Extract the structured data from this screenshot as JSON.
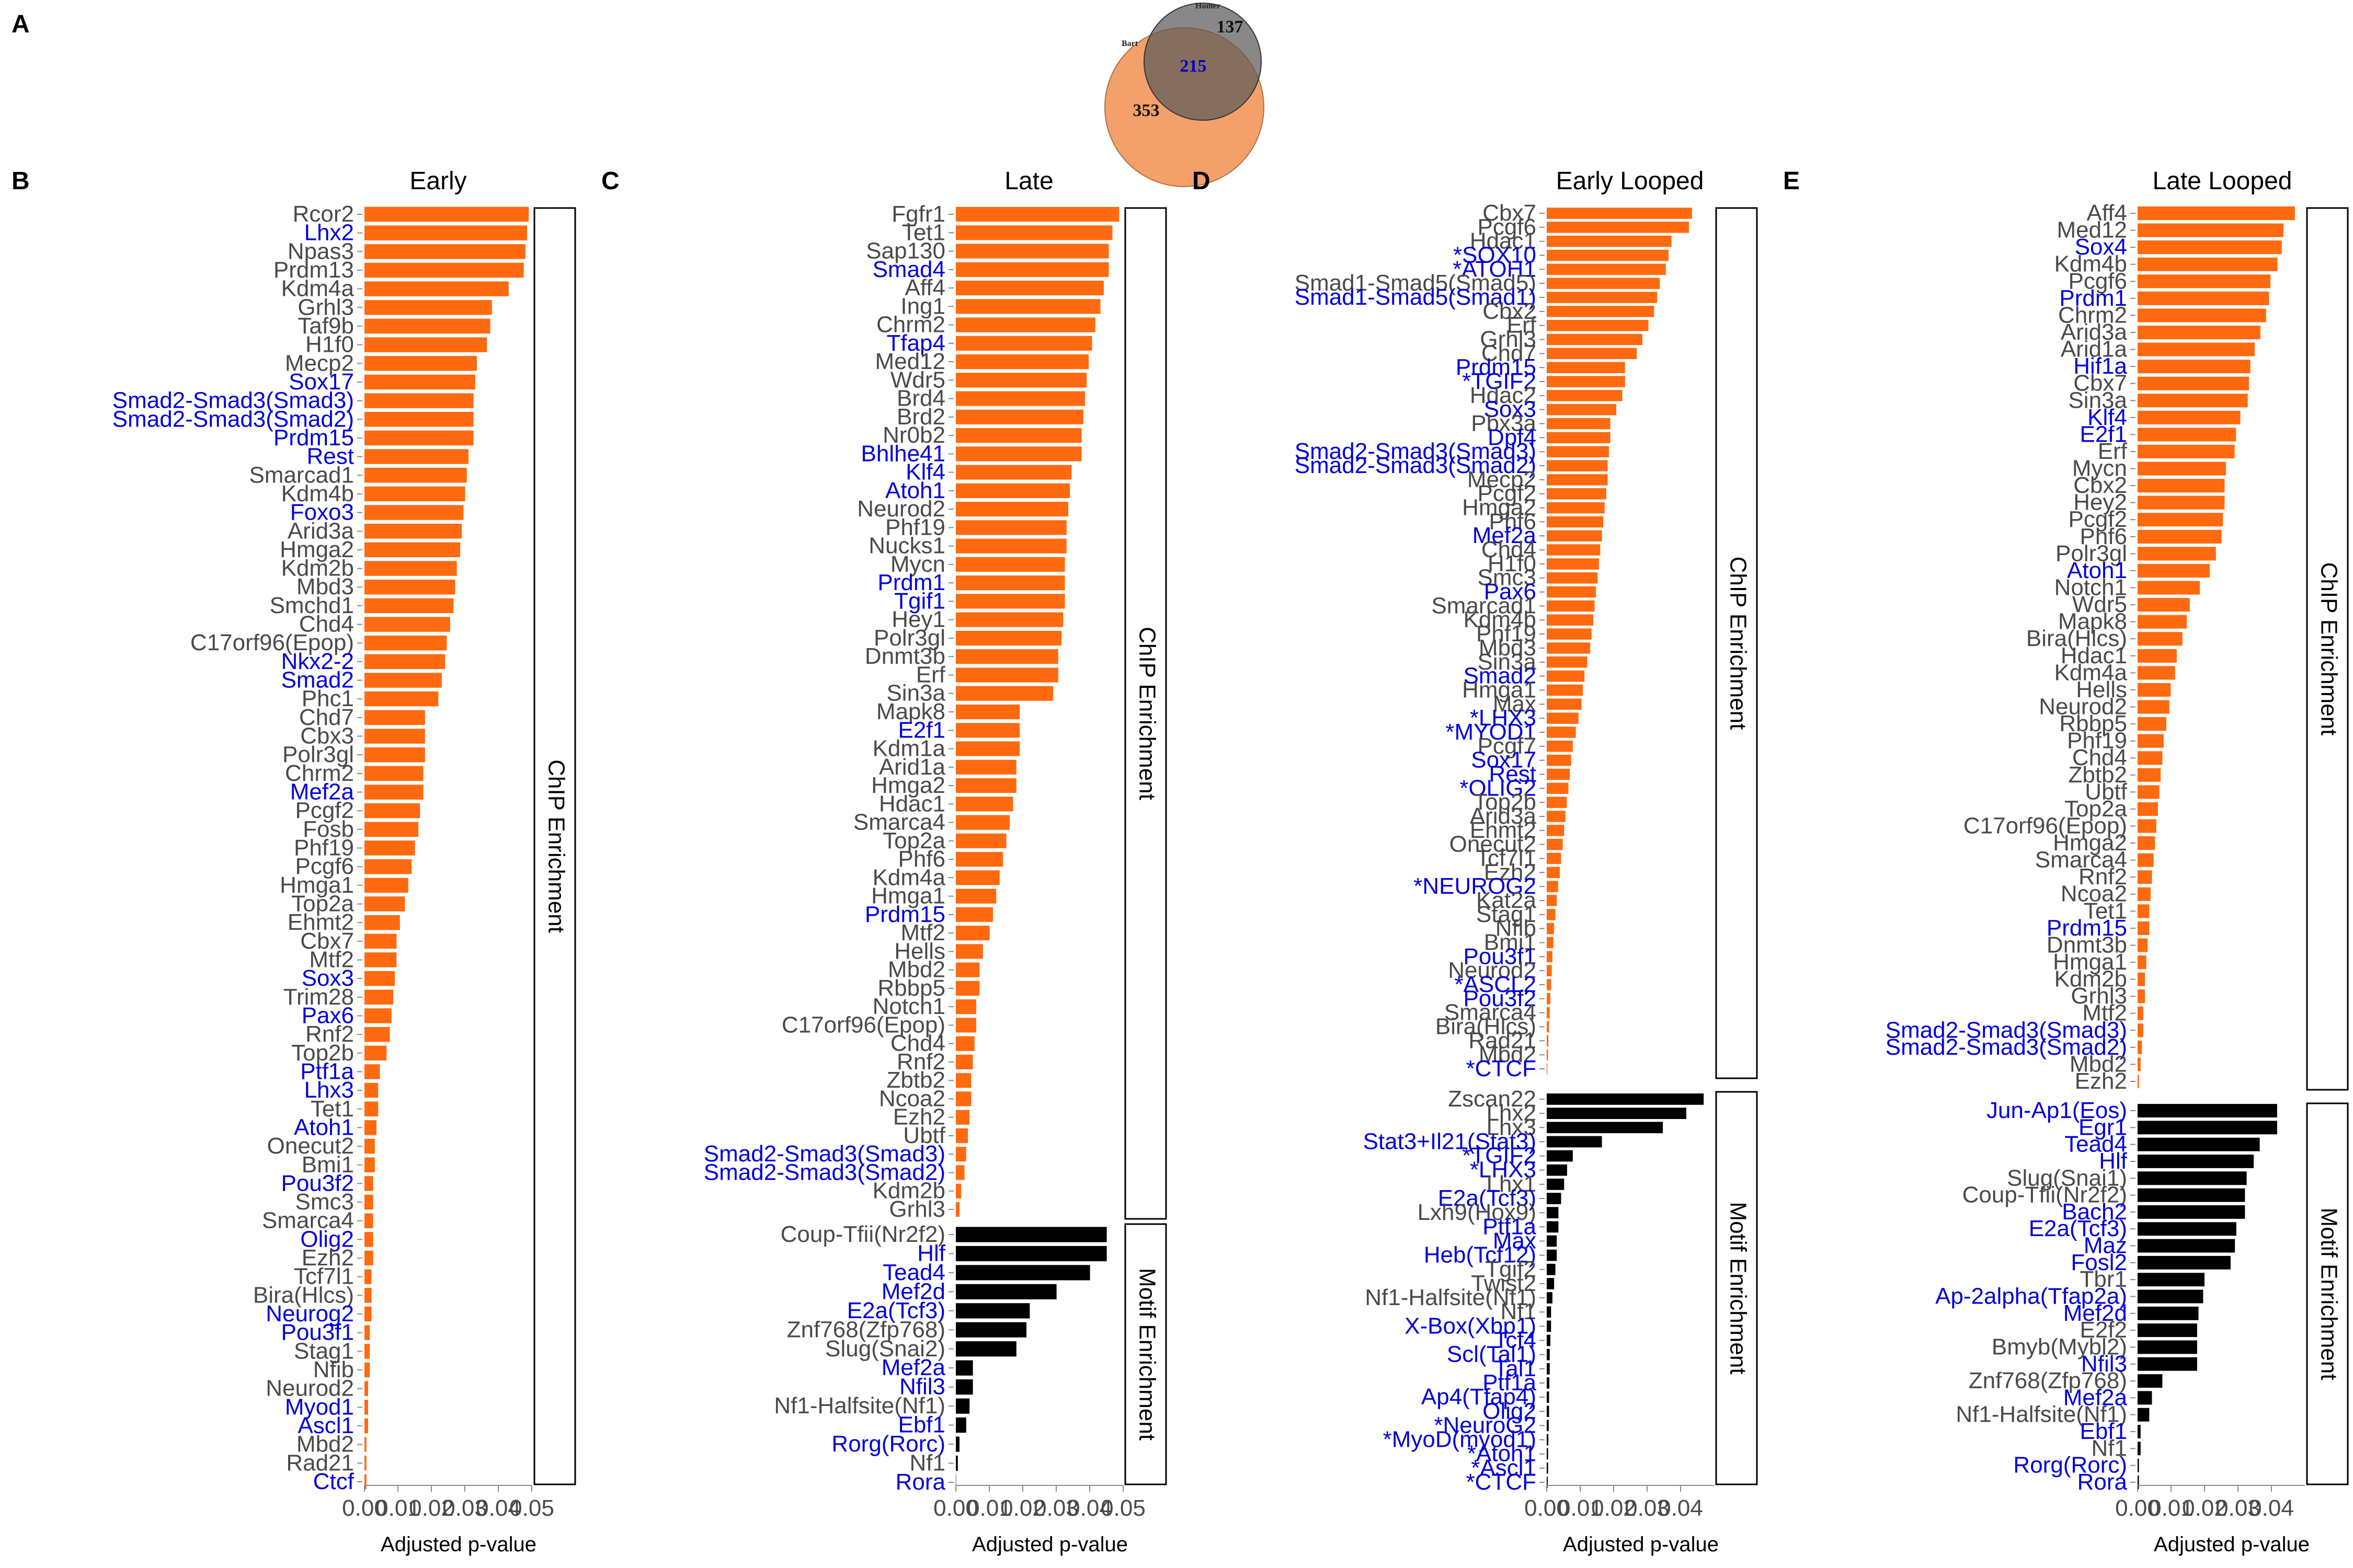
{
  "panel_labels": [
    "A",
    "B",
    "C",
    "D",
    "E"
  ],
  "venn": {
    "left_label": "Bart",
    "right_label": "Homer",
    "left_only": "353",
    "overlap": "215",
    "right_only": "137",
    "colors": {
      "left": "#f4a06a",
      "right": "#8a8a8a",
      "overlap_text": "#0000cc"
    }
  },
  "colors": {
    "chip_bar": "#ff6a10",
    "motif_bar": "#000000",
    "highlight_label": "#0000dd",
    "normal_label": "#4a4a4a"
  },
  "chart_data": [
    {
      "type": "bar",
      "orientation": "horizontal",
      "panel": "B",
      "title": "Early",
      "xlabel": "Adjusted p-value",
      "xlim": [
        0,
        0.05
      ],
      "x_ticks": [
        "0.00",
        "0.01",
        "0.02",
        "0.03",
        "0.04",
        "0.05"
      ],
      "sections": [
        {
          "name": "ChIP Enrichment",
          "bar_color": "#ff6a10",
          "categories": [
            "Rcor2",
            "Lhx2",
            "Npas3",
            "Prdm13",
            "Kdm4a",
            "Grhl3",
            "Taf9b",
            "H1f0",
            "Mecp2",
            "Sox17",
            "Smad2-Smad3(Smad3)",
            "Smad2-Smad3(Smad2)",
            "Prdm15",
            "Rest",
            "Smarcad1",
            "Kdm4b",
            "Foxo3",
            "Arid3a",
            "Hmga2",
            "Kdm2b",
            "Mbd3",
            "Smchd1",
            "Chd4",
            "C17orf96(Epop)",
            "Nkx2-2",
            "Smad2",
            "Phc1",
            "Chd7",
            "Cbx3",
            "Polr3gl",
            "Chrm2",
            "Mef2a",
            "Pcgf2",
            "Fosb",
            "Phf19",
            "Pcgf6",
            "Hmga1",
            "Top2a",
            "Ehmt2",
            "Cbx7",
            "Mtf2",
            "Sox3",
            "Trim28",
            "Pax6",
            "Rnf2",
            "Top2b",
            "Ptf1a",
            "Lhx3",
            "Tet1",
            "Atoh1",
            "Onecut2",
            "Bmi1",
            "Pou3f2",
            "Smc3",
            "Smarca4",
            "Olig2",
            "Ezh2",
            "Tcf7l1",
            "Bira(Hlcs)",
            "Neurog2",
            "Pou3f1",
            "Stag1",
            "Nfib",
            "Neurod2",
            "Myod1",
            "Ascl1",
            "Mbd2",
            "Rad21",
            "Ctcf"
          ],
          "values": [
            0.0491,
            0.0486,
            0.0481,
            0.0476,
            0.0431,
            0.0381,
            0.0376,
            0.0366,
            0.0336,
            0.0331,
            0.0326,
            0.0326,
            0.0326,
            0.0311,
            0.0306,
            0.0301,
            0.0296,
            0.0291,
            0.0286,
            0.0276,
            0.0271,
            0.0266,
            0.0256,
            0.0246,
            0.0241,
            0.0231,
            0.0221,
            0.0181,
            0.0181,
            0.0181,
            0.0176,
            0.0176,
            0.0166,
            0.0161,
            0.0151,
            0.0141,
            0.0131,
            0.0121,
            0.0106,
            0.0096,
            0.0096,
            0.0091,
            0.0086,
            0.0081,
            0.0076,
            0.0066,
            0.0046,
            0.0041,
            0.0041,
            0.0036,
            0.0031,
            0.0031,
            0.0026,
            0.0026,
            0.0026,
            0.0026,
            0.0026,
            0.0021,
            0.0021,
            0.0021,
            0.0016,
            0.0016,
            0.0016,
            0.0011,
            0.0011,
            0.0011,
            0.0006,
            0.0006,
            0.0006
          ],
          "highlighted": [
            "Lhx2",
            "Sox17",
            "Smad2-Smad3(Smad3)",
            "Smad2-Smad3(Smad2)",
            "Prdm15",
            "Rest",
            "Foxo3",
            "Nkx2-2",
            "Smad2",
            "Mef2a",
            "Sox3",
            "Pax6",
            "Ptf1a",
            "Lhx3",
            "Atoh1",
            "Pou3f2",
            "Olig2",
            "Neurog2",
            "Pou3f1",
            "Myod1",
            "Ascl1",
            "Ctcf"
          ]
        }
      ]
    },
    {
      "type": "bar",
      "orientation": "horizontal",
      "panel": "C",
      "title": "Late",
      "xlabel": "Adjusted p-value",
      "xlim": [
        0,
        0.05
      ],
      "x_ticks": [
        "0.00",
        "0.01",
        "0.02",
        "0.03",
        "0.04",
        "0.05"
      ],
      "sections": [
        {
          "name": "ChIP Enrichment",
          "bar_color": "#ff6a10",
          "categories": [
            "Fgfr1",
            "Tet1",
            "Sap130",
            "Smad4",
            "Aff4",
            "Ing1",
            "Chrm2",
            "Tfap4",
            "Med12",
            "Wdr5",
            "Brd4",
            "Brd2",
            "Nr0b2",
            "Bhlhe41",
            "Klf4",
            "Atoh1",
            "Neurod2",
            "Phf19",
            "Nucks1",
            "Mycn",
            "Prdm1",
            "Tgif1",
            "Hey1",
            "Polr3gl",
            "Dnmt3b",
            "Erf",
            "Sin3a",
            "Mapk8",
            "E2f1",
            "Kdm1a",
            "Arid1a",
            "Hmga2",
            "Hdac1",
            "Smarca4",
            "Top2a",
            "Phf6",
            "Kdm4a",
            "Hmga1",
            "Prdm15",
            "Mtf2",
            "Hells",
            "Mbd2",
            "Rbbp5",
            "Notch1",
            "C17orf96(Epop)",
            "Chd4",
            "Rnf2",
            "Zbtb2",
            "Ncoa2",
            "Ezh2",
            "Ubtf",
            "Smad2-Smad3(Smad3)",
            "Smad2-Smad3(Smad2)",
            "Kdm2b",
            "Grhl3"
          ],
          "values": [
            0.0488,
            0.0468,
            0.0457,
            0.0457,
            0.0442,
            0.0432,
            0.0417,
            0.0407,
            0.0397,
            0.0391,
            0.0386,
            0.0381,
            0.0376,
            0.0376,
            0.0346,
            0.0341,
            0.0336,
            0.0331,
            0.0331,
            0.0326,
            0.0326,
            0.0326,
            0.0321,
            0.0316,
            0.0306,
            0.0306,
            0.0291,
            0.0191,
            0.0191,
            0.0191,
            0.0181,
            0.0181,
            0.0171,
            0.0161,
            0.0151,
            0.0141,
            0.0131,
            0.0121,
            0.0111,
            0.0101,
            0.0081,
            0.0071,
            0.0071,
            0.0061,
            0.0061,
            0.0056,
            0.0051,
            0.0046,
            0.0046,
            0.0041,
            0.0036,
            0.0031,
            0.0026,
            0.0016,
            0.0011
          ],
          "highlighted": [
            "Smad4",
            "Tfap4",
            "Bhlhe41",
            "Klf4",
            "Atoh1",
            "Prdm1",
            "Tgif1",
            "E2f1",
            "Prdm15",
            "Smad2-Smad3(Smad3)",
            "Smad2-Smad3(Smad2)"
          ]
        },
        {
          "name": "Motif Enrichment",
          "bar_color": "#000000",
          "categories": [
            "Coup-Tfii(Nr2f2)",
            "Hlf",
            "Tead4",
            "Mef2d",
            "E2a(Tcf3)",
            "Znf768(Zfp768)",
            "Slug(Snai2)",
            "Mef2a",
            "Nfil3",
            "Nf1-Halfsite(Nf1)",
            "Ebf1",
            "Rorg(Rorc)",
            "Nf1",
            "Rora"
          ],
          "values": [
            0.0451,
            0.0451,
            0.0401,
            0.0301,
            0.0221,
            0.0211,
            0.0181,
            0.0051,
            0.0051,
            0.0041,
            0.0031,
            0.0011,
            0.0006,
            0.0001
          ],
          "highlighted": [
            "Hlf",
            "Tead4",
            "Mef2d",
            "E2a(Tcf3)",
            "Mef2a",
            "Nfil3",
            "Ebf1",
            "Rorg(Rorc)",
            "Rora"
          ]
        }
      ]
    },
    {
      "type": "bar",
      "orientation": "horizontal",
      "panel": "D",
      "title": "Early Looped",
      "xlabel": "Adjusted p-value",
      "xlim": [
        0,
        0.05
      ],
      "x_ticks": [
        "0.00",
        "0.01",
        "0.02",
        "0.03",
        "0.04"
      ],
      "sections": [
        {
          "name": "ChIP Enrichment",
          "bar_color": "#ff6a10",
          "categories": [
            "Cbx7",
            "Pcgf6",
            "Hdac1",
            "*SOX10",
            "*ATOH1",
            "Smad1-Smad5(Smad5)",
            "Smad1-Smad5(Smad1)",
            "Cbx2",
            "Erf",
            "Grhl3",
            "Chd7",
            "Prdm15",
            "*TGIF2",
            "Hdac2",
            "Sox3",
            "Pbx3a",
            "Dpf4",
            "Smad2-Smad3(Smad3)",
            "Smad2-Smad3(Smad2)",
            "Mecp2",
            "Pcgf2",
            "Hmga2",
            "Phf6",
            "Mef2a",
            "Chd4",
            "H1f0",
            "Smc3",
            "Pax6",
            "Smarcad1",
            "Kdm4b",
            "Phf19",
            "Mbd3",
            "Sin3a",
            "Smad2",
            "Hmga1",
            "Max",
            "*LHX3",
            "*MYOD1",
            "Pcgf7",
            "Sox17",
            "Rest",
            "*OLIG2",
            "Top2b",
            "Arid3a",
            "Ehmt2",
            "Onecut2",
            "Tcf7l1",
            "Ezh2",
            "*NEUROG2",
            "Kat2a",
            "Stag1",
            "Nfib",
            "Bmi1",
            "Pou3f1",
            "Neurod2",
            "*ASCL2",
            "Pou3f2",
            "Smarca4",
            "Bira(Hlcs)",
            "Rad21",
            "Mbd2",
            "*CTCF"
          ],
          "values": [
            0.0434,
            0.0425,
            0.0373,
            0.0364,
            0.0356,
            0.0338,
            0.033,
            0.0321,
            0.0304,
            0.0286,
            0.0269,
            0.0234,
            0.0234,
            0.0226,
            0.0208,
            0.019,
            0.019,
            0.0186,
            0.0182,
            0.0182,
            0.0178,
            0.0173,
            0.0169,
            0.0165,
            0.016,
            0.0156,
            0.0152,
            0.0147,
            0.0143,
            0.0139,
            0.0134,
            0.013,
            0.0121,
            0.0113,
            0.0108,
            0.0104,
            0.0095,
            0.0087,
            0.0078,
            0.0073,
            0.0069,
            0.0065,
            0.006,
            0.0056,
            0.0052,
            0.0048,
            0.0043,
            0.0039,
            0.0034,
            0.003,
            0.0026,
            0.0022,
            0.002,
            0.0017,
            0.0015,
            0.0013,
            0.0011,
            0.0009,
            0.0007,
            0.0005,
            0.0004,
            0.0002
          ],
          "highlighted": [
            "*SOX10",
            "*ATOH1",
            "Smad1-Smad5(Smad1)",
            "Prdm15",
            "*TGIF2",
            "Sox3",
            "Dpf4",
            "Smad2-Smad3(Smad3)",
            "Smad2-Smad3(Smad2)",
            "Mef2a",
            "Pax6",
            "Smad2",
            "*LHX3",
            "*MYOD1",
            "Sox17",
            "Rest",
            "*OLIG2",
            "*NEUROG2",
            "Pou3f1",
            "*ASCL2",
            "Pou3f2",
            "*CTCF"
          ]
        },
        {
          "name": "Motif Enrichment",
          "bar_color": "#000000",
          "categories": [
            "Zscan22",
            "Lhx2",
            "Lhx3",
            "Stat3+Il21(Stat3)",
            "*TGIF2",
            "*LHX3",
            "Lhx1",
            "E2a(Tcf3)",
            "Lxh9(Hox9)",
            "Ptf1a",
            "Max",
            "Heb(Tcf12)",
            "Tgif2",
            "Twist2",
            "Nf1-Halfsite(Nf1)",
            "Nf1",
            "X-Box(Xbp1)",
            "Tcf4",
            "Scl(Tal1)",
            "Tal1",
            "Ptf1a",
            "Ap4(Tfap4)",
            "Olig2",
            "*NeuroG2",
            "*MyoD(myod1)",
            "*Atoh1",
            "*Ascl1",
            "*CTCF"
          ],
          "values": [
            0.0469,
            0.0417,
            0.0347,
            0.0165,
            0.0078,
            0.0061,
            0.0052,
            0.0043,
            0.0035,
            0.0035,
            0.003,
            0.003,
            0.0026,
            0.0022,
            0.0017,
            0.0013,
            0.0013,
            0.0011,
            0.0009,
            0.0009,
            0.0008,
            0.0007,
            0.0007,
            0.0006,
            0.0005,
            0.0004,
            0.0004,
            0.0003
          ],
          "highlighted": [
            "Stat3+Il21(Stat3)",
            "*TGIF2",
            "*LHX3",
            "E2a(Tcf3)",
            "Max",
            "Heb(Tcf12)",
            "X-Box(Xbp1)",
            "Tcf4",
            "Scl(Tal1)",
            "Tal1",
            "Ptf1a",
            "Ap4(Tfap4)",
            "Olig2",
            "*NeuroG2",
            "*MyoD(myod1)",
            "*Atoh1",
            "*Ascl1",
            "*CTCF"
          ]
        }
      ]
    },
    {
      "type": "bar",
      "orientation": "horizontal",
      "panel": "E",
      "title": "Late Looped",
      "xlabel": "Adjusted p-value",
      "xlim": [
        0,
        0.05
      ],
      "x_ticks": [
        "0.00",
        "0.01",
        "0.02",
        "0.03",
        "0.04"
      ],
      "sections": [
        {
          "name": "ChIP Enrichment",
          "bar_color": "#ff6a10",
          "categories": [
            "Aff4",
            "Med12",
            "Sox4",
            "Kdm4b",
            "Pcgf6",
            "Prdm1",
            "Chrm2",
            "Arid3a",
            "Arid1a",
            "Hif1a",
            "Cbx7",
            "Sin3a",
            "Klf4",
            "E2f1",
            "Erf",
            "Mycn",
            "Cbx2",
            "Hey2",
            "Pcgf2",
            "Phf6",
            "Polr3gl",
            "Atoh1",
            "Notch1",
            "Wdr5",
            "Mapk8",
            "Bira(Hlcs)",
            "Hdac1",
            "Kdm4a",
            "Hells",
            "Neurod2",
            "Rbbp5",
            "Phf19",
            "Chd4",
            "Zbtb2",
            "Ubtf",
            "Top2a",
            "C17orf96(Epop)",
            "Hmga2",
            "Smarca4",
            "Rnf2",
            "Ncoa2",
            "Tet1",
            "Prdm15",
            "Dnmt3b",
            "Hmga1",
            "Kdm2b",
            "Grhl3",
            "Mtf2",
            "Smad2-Smad3(Smad3)",
            "Smad2-Smad3(Smad2)",
            "Mbd2",
            "Ezh2"
          ],
          "values": [
            0.047,
            0.0436,
            0.0431,
            0.0418,
            0.0397,
            0.0393,
            0.0384,
            0.0367,
            0.035,
            0.0337,
            0.0333,
            0.0329,
            0.0307,
            0.0294,
            0.029,
            0.0264,
            0.026,
            0.026,
            0.0255,
            0.0251,
            0.0234,
            0.0216,
            0.0186,
            0.0156,
            0.0147,
            0.0134,
            0.0117,
            0.0112,
            0.0099,
            0.0095,
            0.0086,
            0.0078,
            0.0074,
            0.0069,
            0.0065,
            0.0061,
            0.0056,
            0.0052,
            0.0048,
            0.0043,
            0.0039,
            0.0035,
            0.0035,
            0.003,
            0.0026,
            0.0022,
            0.0022,
            0.0017,
            0.0017,
            0.0013,
            0.0009,
            0.0004
          ],
          "highlighted": [
            "Sox4",
            "Prdm1",
            "Hif1a",
            "Klf4",
            "E2f1",
            "Atoh1",
            "Prdm15",
            "Smad2-Smad3(Smad3)",
            "Smad2-Smad3(Smad2)"
          ]
        },
        {
          "name": "Motif Enrichment",
          "bar_color": "#000000",
          "categories": [
            "Jun-Ap1(Eos)",
            "Egr1",
            "Tead4",
            "Hlf",
            "Slug(Snai1)",
            "Coup-Tfii(Nr2f2)",
            "Bach2",
            "E2a(Tcf3)",
            "Maz",
            "Fosl2",
            "Tbr1",
            "Ap-2alpha(Tfap2a)",
            "Mef2d",
            "E2f2",
            "Bmyb(Mybl2)",
            "Nfil3",
            "Znf768(Zfp768)",
            "Mef2a",
            "Nf1-Halfsite(Nf1)",
            "Ebf1",
            "Nf1",
            "Rorg(Rorc)",
            "Rora"
          ],
          "values": [
            0.0417,
            0.0417,
            0.0365,
            0.0347,
            0.0326,
            0.0321,
            0.0321,
            0.0295,
            0.0291,
            0.0278,
            0.02,
            0.0196,
            0.0182,
            0.0178,
            0.0178,
            0.0178,
            0.0074,
            0.0043,
            0.0035,
            0.0009,
            0.0009,
            0.0004,
            0.0004
          ],
          "highlighted": [
            "Jun-Ap1(Eos)",
            "Egr1",
            "Tead4",
            "Hlf",
            "Bach2",
            "E2a(Tcf3)",
            "Maz",
            "Fosl2",
            "Ap-2alpha(Tfap2a)",
            "Mef2d",
            "Nfil3",
            "Mef2a",
            "Ebf1",
            "Rorg(Rorc)",
            "Rora"
          ]
        }
      ]
    }
  ]
}
